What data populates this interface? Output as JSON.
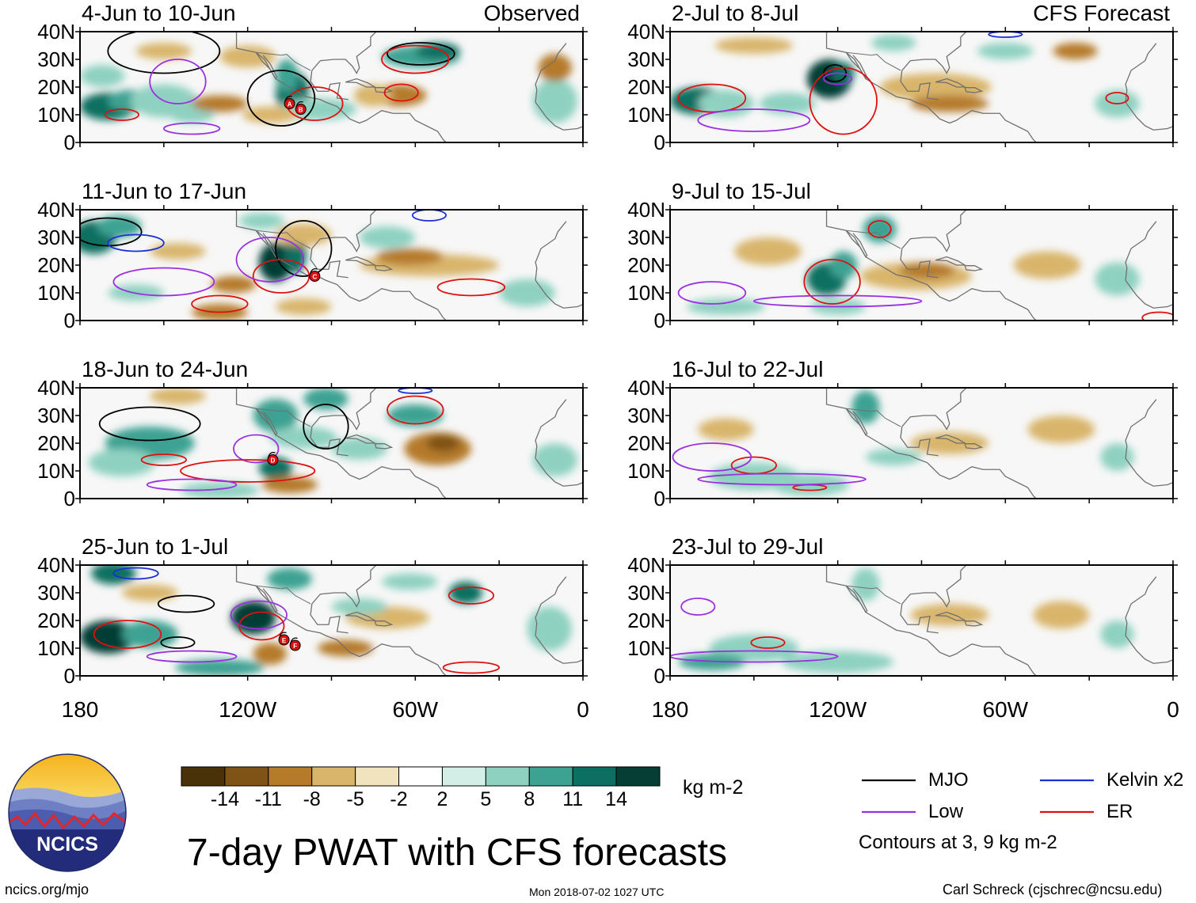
{
  "chart_data": {
    "type": "heatmap",
    "title": "7-day PWAT with CFS forecasts",
    "variable": "PWAT",
    "units": "kg m-2",
    "x_ticks": [
      "180",
      "120W",
      "60W",
      "0"
    ],
    "y_ticks": [
      "40N",
      "30N",
      "20N",
      "10N",
      "0"
    ],
    "x_range": [
      -180,
      0
    ],
    "y_range": [
      0,
      40
    ],
    "colorbar": {
      "labels": [
        "-14",
        "-11",
        "-8",
        "-5",
        "-2",
        "2",
        "5",
        "8",
        "11",
        "14"
      ],
      "colors": [
        "#4a3208",
        "#7f5216",
        "#b57a2a",
        "#d9b56c",
        "#f2e3bf",
        "#ffffff",
        "#d3eee6",
        "#8fd1c1",
        "#3ea293",
        "#0c6f61",
        "#063d34"
      ]
    },
    "columns": [
      {
        "name": "Observed",
        "panels": [
          "4-Jun to 10-Jun",
          "11-Jun to 17-Jun",
          "18-Jun to 24-Jun",
          "25-Jun to 1-Jul"
        ]
      },
      {
        "name": "CFS Forecast",
        "panels": [
          "2-Jul to 8-Jul",
          "9-Jul to 15-Jul",
          "16-Jul to 22-Jul",
          "23-Jul to 29-Jul"
        ]
      }
    ],
    "contour_legend": [
      {
        "label": "MJO",
        "color": "#000000"
      },
      {
        "label": "Kelvin x2",
        "color": "#1a2fd8"
      },
      {
        "label": "Low",
        "color": "#9b30e0"
      },
      {
        "label": "ER",
        "color": "#e01010"
      }
    ],
    "contour_note": "Contours at 3, 9 kg m-2",
    "storm_markers": [
      "A",
      "B",
      "C",
      "D",
      "E",
      "F"
    ]
  },
  "footer": {
    "logo_text": "NCICS",
    "url": "ncics.org/mjo",
    "timestamp": "Mon 2018-07-02 1027 UTC",
    "credit": "Carl Schreck (cjschrec@ncsu.edu)"
  }
}
